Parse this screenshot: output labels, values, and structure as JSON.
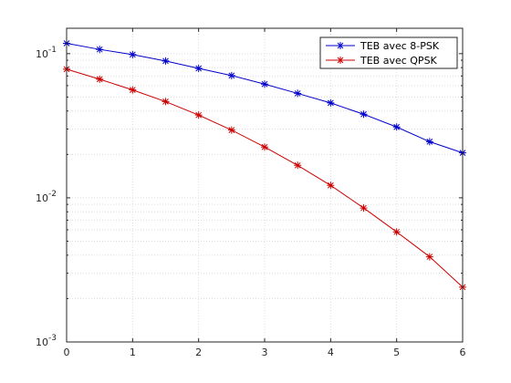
{
  "chart_data": {
    "type": "line",
    "title": "",
    "xlabel": "",
    "ylabel": "",
    "x": [
      0,
      0.5,
      1,
      1.5,
      2,
      2.5,
      3,
      3.5,
      4,
      4.5,
      5,
      5.5,
      6
    ],
    "xlim": [
      0,
      6
    ],
    "ylim": [
      0.001,
      0.15
    ],
    "yscale": "log",
    "grid": true,
    "legend_position": "top-right",
    "xticks": [
      "0",
      "1",
      "2",
      "3",
      "4",
      "5",
      "6"
    ],
    "yticks": [
      {
        "base": "10",
        "exp": "-1"
      },
      {
        "base": "10",
        "exp": "-2"
      },
      {
        "base": "10",
        "exp": "-3"
      }
    ],
    "series": [
      {
        "name": "TEB avec 8-PSK",
        "color": "#0000cc",
        "values": [
          0.118,
          0.107,
          0.0985,
          0.089,
          0.079,
          0.0705,
          0.0615,
          0.053,
          0.0455,
          0.038,
          0.031,
          0.0245,
          0.0205
        ]
      },
      {
        "name": "TEB avec QPSK",
        "color": "#cc0000",
        "values": [
          0.078,
          0.0665,
          0.056,
          0.0465,
          0.0375,
          0.0295,
          0.0225,
          0.0168,
          0.0122,
          0.0085,
          0.0058,
          0.0039,
          0.0024
        ]
      }
    ]
  }
}
